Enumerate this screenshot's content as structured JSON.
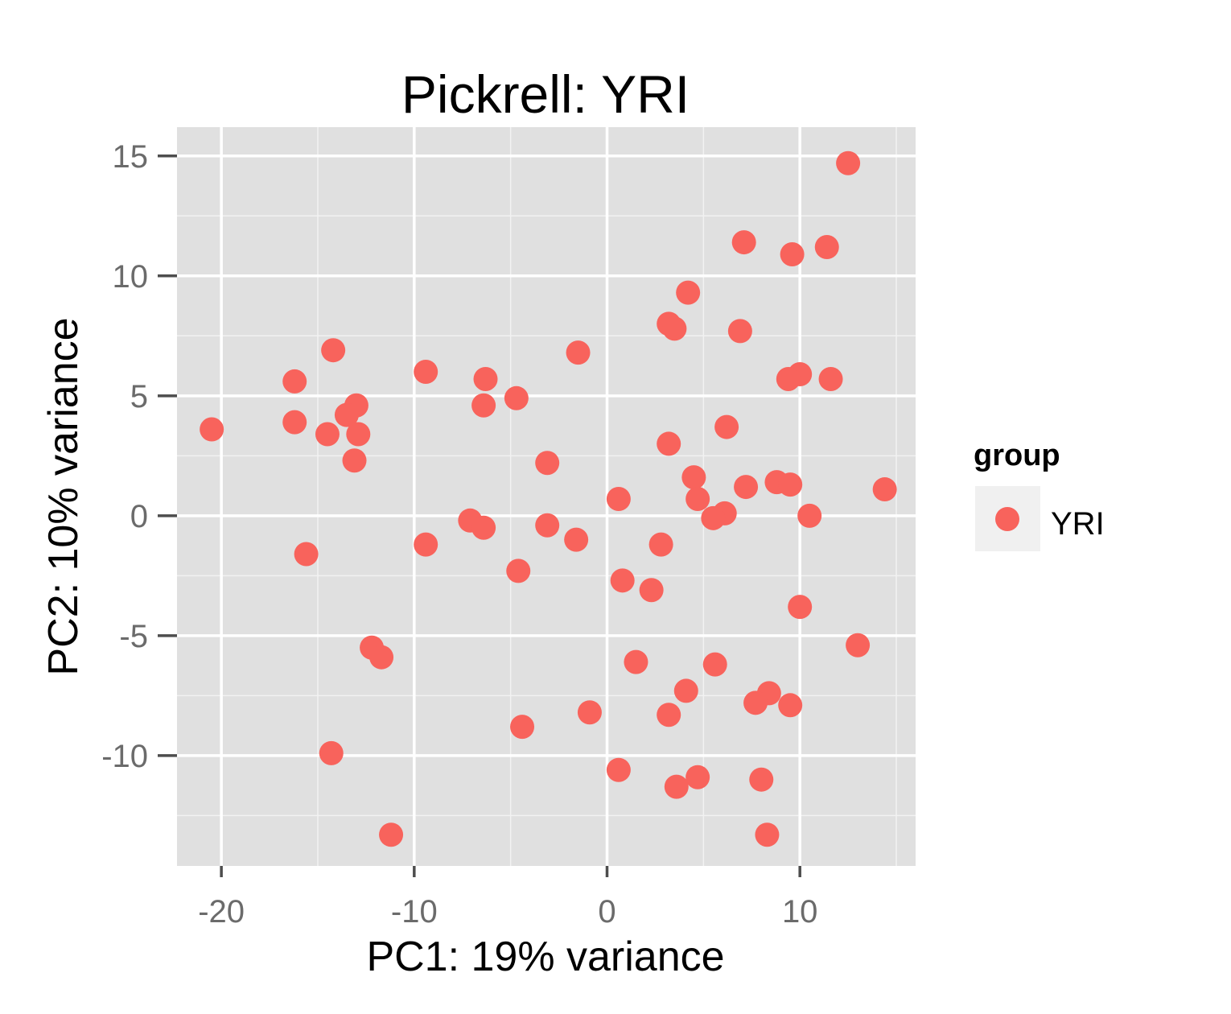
{
  "chart_data": {
    "type": "scatter",
    "title": "Pickrell: YRI",
    "xlabel": "PC1: 19% variance",
    "ylabel": "PC2: 10% variance",
    "xlim": [
      -22.3,
      16
    ],
    "ylim": [
      -14.6,
      16.2
    ],
    "x_ticks": [
      -20,
      -10,
      0,
      10
    ],
    "y_ticks": [
      -10,
      -5,
      0,
      5,
      10,
      15
    ],
    "x_tick_labels": [
      "-20",
      "-10",
      "0",
      "10"
    ],
    "y_tick_labels": [
      "-10",
      "-5",
      "0",
      "5",
      "10",
      "15"
    ],
    "grid": true,
    "panel_background": "#e0e0e0",
    "legend": {
      "title": "group",
      "position": "right",
      "entries": [
        {
          "label": "YRI",
          "color": "#f8635c"
        }
      ]
    },
    "series": [
      {
        "name": "YRI",
        "color": "#f8635c",
        "points": [
          [
            12.5,
            14.7
          ],
          [
            7.1,
            11.4
          ],
          [
            11.4,
            11.2
          ],
          [
            9.6,
            10.9
          ],
          [
            4.2,
            9.3
          ],
          [
            3.2,
            8.0
          ],
          [
            3.5,
            7.8
          ],
          [
            6.9,
            7.7
          ],
          [
            -14.2,
            6.9
          ],
          [
            -1.5,
            6.8
          ],
          [
            -9.4,
            6.0
          ],
          [
            10.0,
            5.9
          ],
          [
            -6.3,
            5.7
          ],
          [
            9.4,
            5.7
          ],
          [
            11.6,
            5.7
          ],
          [
            -16.2,
            5.6
          ],
          [
            -4.7,
            4.9
          ],
          [
            -6.4,
            4.6
          ],
          [
            -13.0,
            4.6
          ],
          [
            -13.5,
            4.2
          ],
          [
            -16.2,
            3.9
          ],
          [
            6.2,
            3.7
          ],
          [
            -20.5,
            3.6
          ],
          [
            -14.5,
            3.4
          ],
          [
            -12.9,
            3.4
          ],
          [
            3.2,
            3.0
          ],
          [
            -13.1,
            2.3
          ],
          [
            -3.1,
            2.2
          ],
          [
            4.5,
            1.6
          ],
          [
            8.8,
            1.4
          ],
          [
            9.5,
            1.3
          ],
          [
            7.2,
            1.2
          ],
          [
            14.4,
            1.1
          ],
          [
            4.7,
            0.7
          ],
          [
            0.6,
            0.7
          ],
          [
            6.1,
            0.1
          ],
          [
            5.5,
            -0.1
          ],
          [
            10.5,
            0.0
          ],
          [
            -7.1,
            -0.2
          ],
          [
            -6.4,
            -0.5
          ],
          [
            -3.1,
            -0.4
          ],
          [
            -1.6,
            -1.0
          ],
          [
            -9.4,
            -1.2
          ],
          [
            2.8,
            -1.2
          ],
          [
            -15.6,
            -1.6
          ],
          [
            -4.6,
            -2.3
          ],
          [
            0.8,
            -2.7
          ],
          [
            2.3,
            -3.1
          ],
          [
            10.0,
            -3.8
          ],
          [
            13.0,
            -5.4
          ],
          [
            -12.2,
            -5.5
          ],
          [
            -11.7,
            -5.9
          ],
          [
            1.5,
            -6.1
          ],
          [
            5.6,
            -6.2
          ],
          [
            4.1,
            -7.3
          ],
          [
            8.4,
            -7.4
          ],
          [
            7.7,
            -7.8
          ],
          [
            9.5,
            -7.9
          ],
          [
            -0.9,
            -8.2
          ],
          [
            3.2,
            -8.3
          ],
          [
            -4.4,
            -8.8
          ],
          [
            -14.3,
            -9.9
          ],
          [
            0.6,
            -10.6
          ],
          [
            4.7,
            -10.9
          ],
          [
            3.6,
            -11.3
          ],
          [
            8.0,
            -11.0
          ],
          [
            -11.2,
            -13.3
          ],
          [
            8.3,
            -13.3
          ]
        ]
      }
    ]
  }
}
